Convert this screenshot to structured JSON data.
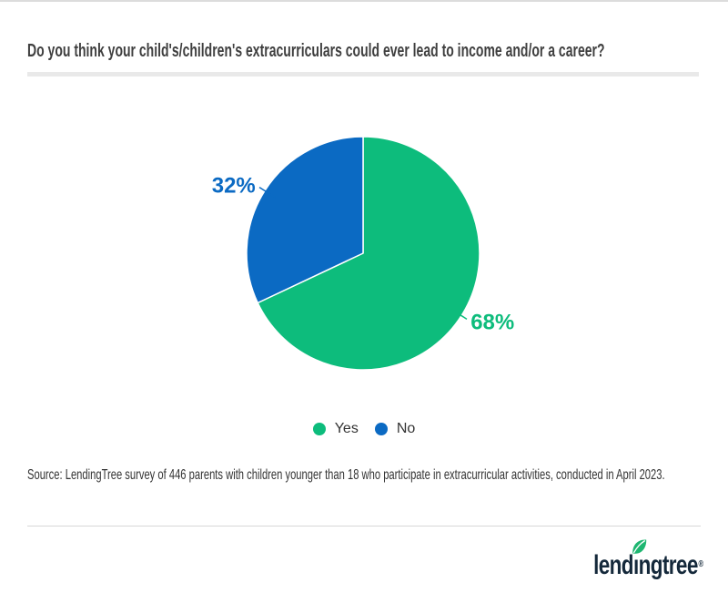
{
  "page": {
    "title": "Do you think your child's/children's extracurriculars could ever lead to income and/or a career?",
    "source_text": "Source: LendingTree survey of 446 parents with children younger than 18 who participate in extracurricular activities, conducted in April 2023.",
    "brand": {
      "logo_text": "lendingtree",
      "logo_part1": "lend",
      "logo_i": "ı",
      "logo_part2": "ngtree",
      "registered_mark": "®",
      "logo_color": "#15293b",
      "leaf_color": "#1eb671"
    }
  },
  "chart_data": {
    "type": "pie",
    "title": "Do you think your child's/children's extracurriculars could ever lead to income and/or a career?",
    "labels": [
      "Yes",
      "No"
    ],
    "values": [
      68,
      32
    ],
    "data_labels": [
      "68%",
      "32%"
    ],
    "colors": [
      "#0dbc7c",
      "#0b6ac3"
    ],
    "start_angle_deg": 0,
    "direction": "clockwise",
    "slice_border_color": "#ffffff",
    "legend_position": "bottom",
    "legend": [
      {
        "label": "Yes",
        "color": "#0dbc7c"
      },
      {
        "label": "No",
        "color": "#0b6ac3"
      }
    ]
  },
  "styles": {
    "title_color": "#3f3f3f",
    "text_color": "#333333",
    "divider_color": "#e9e9e9",
    "rule_color": "#d7d7d7"
  }
}
